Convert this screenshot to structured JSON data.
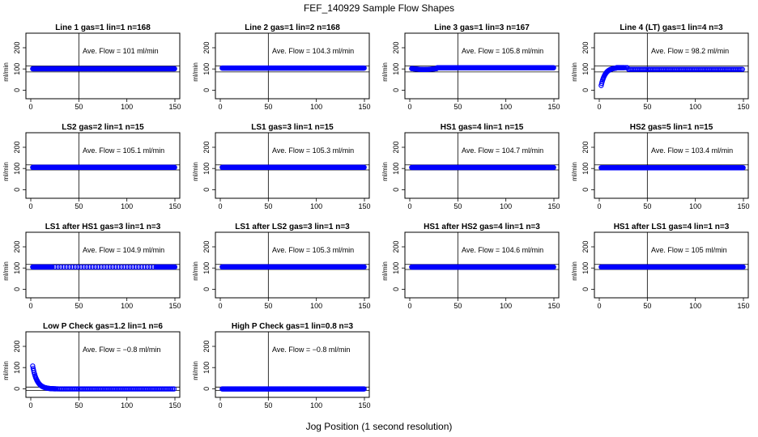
{
  "figure": {
    "title": "FEF_140929  Sample Flow Shapes",
    "xlabel": "Jog Position (1 second resolution)",
    "point_color": "#0000ff"
  },
  "chart_data": [
    {
      "type": "scatter",
      "title": "Line 1 gas=1 lin=1 n=168",
      "annotation": "Ave. Flow =  101  ml/min",
      "ylabel": "ml/min",
      "xlim": [
        0,
        150
      ],
      "ylim": [
        -30,
        230
      ],
      "xticks": [
        0,
        50,
        100,
        150
      ],
      "yticks": [
        0,
        100,
        200
      ],
      "ref_lines": [
        86,
        114
      ],
      "shape": "flat",
      "level": 101
    },
    {
      "type": "scatter",
      "title": "Line 2 gas=1 lin=2 n=168",
      "annotation": "Ave. Flow =  104.3  ml/min",
      "ylabel": "ml/min",
      "xlim": [
        0,
        150
      ],
      "ylim": [
        -30,
        230
      ],
      "xticks": [
        0,
        50,
        100,
        150
      ],
      "yticks": [
        0,
        100,
        200
      ],
      "ref_lines": [
        86,
        114
      ],
      "shape": "flat",
      "level": 104.3
    },
    {
      "type": "scatter",
      "title": "Line 3 gas=1 lin=3 n=167",
      "annotation": "Ave. Flow =  105.8  ml/min",
      "ylabel": "ml/min",
      "xlim": [
        0,
        150
      ],
      "ylim": [
        -30,
        230
      ],
      "xticks": [
        0,
        50,
        100,
        150
      ],
      "yticks": [
        0,
        100,
        200
      ],
      "ref_lines": [
        86,
        114
      ],
      "shape": "dip",
      "level": 105.8
    },
    {
      "type": "scatter",
      "title": "Line 4 (LT) gas=1 lin=4 n=3",
      "annotation": "Ave. Flow =  98.2  ml/min",
      "ylabel": "ml/min",
      "xlim": [
        0,
        150
      ],
      "ylim": [
        -30,
        230
      ],
      "xticks": [
        0,
        50,
        100,
        150
      ],
      "yticks": [
        0,
        100,
        200
      ],
      "ref_lines": [
        86,
        114
      ],
      "shape": "rise",
      "level": 98.2
    },
    {
      "type": "scatter",
      "title": "LS2 gas=2 lin=1 n=15",
      "annotation": "Ave. Flow =  105.1  ml/min",
      "ylabel": "ml/min",
      "xlim": [
        0,
        150
      ],
      "ylim": [
        -30,
        230
      ],
      "xticks": [
        0,
        50,
        100,
        150
      ],
      "yticks": [
        0,
        100,
        200
      ],
      "ref_lines": [
        93,
        117
      ],
      "shape": "flat",
      "level": 105.1
    },
    {
      "type": "scatter",
      "title": "LS1 gas=3 lin=1 n=15",
      "annotation": "Ave. Flow =  105.3  ml/min",
      "ylabel": "ml/min",
      "xlim": [
        0,
        150
      ],
      "ylim": [
        -30,
        230
      ],
      "xticks": [
        0,
        50,
        100,
        150
      ],
      "yticks": [
        0,
        100,
        200
      ],
      "ref_lines": [
        93,
        117
      ],
      "shape": "flat",
      "level": 105.3
    },
    {
      "type": "scatter",
      "title": "HS1 gas=4 lin=1 n=15",
      "annotation": "Ave. Flow =  104.7  ml/min",
      "ylabel": "ml/min",
      "xlim": [
        0,
        150
      ],
      "ylim": [
        -30,
        230
      ],
      "xticks": [
        0,
        50,
        100,
        150
      ],
      "yticks": [
        0,
        100,
        200
      ],
      "ref_lines": [
        93,
        117
      ],
      "shape": "flat",
      "level": 104.7
    },
    {
      "type": "scatter",
      "title": "HS2 gas=5 lin=1 n=15",
      "annotation": "Ave. Flow =  103.4  ml/min",
      "ylabel": "ml/min",
      "xlim": [
        0,
        150
      ],
      "ylim": [
        -30,
        230
      ],
      "xticks": [
        0,
        50,
        100,
        150
      ],
      "yticks": [
        0,
        100,
        200
      ],
      "ref_lines": [
        93,
        117
      ],
      "shape": "flat",
      "level": 103.4
    },
    {
      "type": "scatter",
      "title": "LS1 after HS1 gas=3 lin=1 n=3",
      "annotation": "Ave. Flow =  104.9  ml/min",
      "ylabel": "ml/min",
      "xlim": [
        0,
        150
      ],
      "ylim": [
        -30,
        230
      ],
      "xticks": [
        0,
        50,
        100,
        150
      ],
      "yticks": [
        0,
        100,
        200
      ],
      "ref_lines": [
        93,
        117
      ],
      "shape": "sparse",
      "level": 104.9
    },
    {
      "type": "scatter",
      "title": "LS1 after LS2 gas=3 lin=1 n=3",
      "annotation": "Ave. Flow =  105.3  ml/min",
      "ylabel": "ml/min",
      "xlim": [
        0,
        150
      ],
      "ylim": [
        -30,
        230
      ],
      "xticks": [
        0,
        50,
        100,
        150
      ],
      "yticks": [
        0,
        100,
        200
      ],
      "ref_lines": [
        93,
        117
      ],
      "shape": "flat",
      "level": 105.3
    },
    {
      "type": "scatter",
      "title": "HS1 after HS2 gas=4 lin=1 n=3",
      "annotation": "Ave. Flow =  104.6  ml/min",
      "ylabel": "ml/min",
      "xlim": [
        0,
        150
      ],
      "ylim": [
        -30,
        230
      ],
      "xticks": [
        0,
        50,
        100,
        150
      ],
      "yticks": [
        0,
        100,
        200
      ],
      "ref_lines": [
        93,
        117
      ],
      "shape": "flat",
      "level": 104.6
    },
    {
      "type": "scatter",
      "title": "HS1 after LS1 gas=4 lin=1 n=3",
      "annotation": "Ave. Flow =  105  ml/min",
      "ylabel": "ml/min",
      "xlim": [
        0,
        150
      ],
      "ylim": [
        -30,
        230
      ],
      "xticks": [
        0,
        50,
        100,
        150
      ],
      "yticks": [
        0,
        100,
        200
      ],
      "ref_lines": [
        93,
        117
      ],
      "shape": "flat",
      "level": 105
    },
    {
      "type": "scatter",
      "title": "Low P Check gas=1.2 lin=1 n=6",
      "annotation": "Ave. Flow =  −0.8  ml/min",
      "ylabel": "ml/min",
      "xlim": [
        0,
        150
      ],
      "ylim": [
        -30,
        230
      ],
      "xticks": [
        0,
        50,
        100,
        150
      ],
      "yticks": [
        0,
        100,
        200
      ],
      "ref_lines": [
        -8,
        8
      ],
      "shape": "decay",
      "level": -0.8
    },
    {
      "type": "scatter",
      "title": "High P Check gas=1 lin=0.8 n=3",
      "annotation": "Ave. Flow =  −0.8  ml/min",
      "ylabel": "ml/min",
      "xlim": [
        0,
        150
      ],
      "ylim": [
        -30,
        230
      ],
      "xticks": [
        0,
        50,
        100,
        150
      ],
      "yticks": [
        0,
        100,
        200
      ],
      "ref_lines": [
        -8,
        8
      ],
      "shape": "flat",
      "level": -0.8
    }
  ]
}
